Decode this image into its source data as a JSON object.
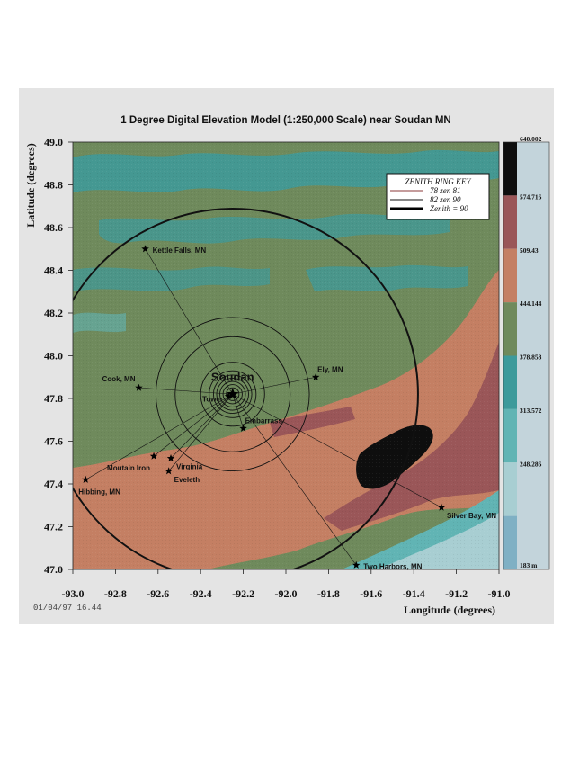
{
  "chart_data": {
    "type": "heatmap",
    "title": "1 Degree Digital Elevation Model (1:250,000 Scale) near Soudan MN",
    "xlabel": "Longitude (degrees)",
    "ylabel": "Latitude (degrees)",
    "xlim": [
      -93.0,
      -91.0
    ],
    "ylim": [
      47.0,
      49.0
    ],
    "x_ticks": [
      -93.0,
      -92.8,
      -92.6,
      -92.4,
      -92.2,
      -92.0,
      -91.8,
      -91.6,
      -91.4,
      -91.2,
      -91.0
    ],
    "x_tick_labels": [
      "-93.0",
      "-92.8",
      "-92.6",
      "-92.4",
      "-92.2",
      "-92.0",
      "-91.8",
      "-91.6",
      "-91.4",
      "-91.2",
      "-91.0"
    ],
    "y_ticks": [
      47.0,
      47.2,
      47.4,
      47.6,
      47.8,
      48.0,
      48.2,
      48.4,
      48.6,
      48.8,
      49.0
    ],
    "y_tick_labels": [
      "47.0",
      "47.2",
      "47.4",
      "47.6",
      "47.8",
      "48.0",
      "48.2",
      "48.4",
      "48.6",
      "48.8",
      "49.0"
    ],
    "timestamp": "01/04/97  16.44",
    "colorbar": {
      "labels": [
        "640.002",
        "574.716",
        "509.43",
        "444.144",
        "378.858",
        "313.572",
        "248.286",
        "183 m"
      ],
      "values": [
        640.002,
        574.716,
        509.43,
        444.144,
        378.858,
        313.572,
        248.286,
        183
      ],
      "unit": "m",
      "bands": [
        {
          "color": "#0e0e0e"
        },
        {
          "color": "#9a5658"
        },
        {
          "color": "#c47f63"
        },
        {
          "color": "#6f8a5c"
        },
        {
          "color": "#3d9a9b"
        },
        {
          "color": "#61b4b4"
        },
        {
          "color": "#a8ced2"
        },
        {
          "color": "#7fb0c4"
        }
      ]
    },
    "center": {
      "name": "Soudan",
      "lon": -92.25,
      "lat": 47.82
    },
    "sites": [
      {
        "name": "Kettle Falls, MN",
        "lon": -92.66,
        "lat": 48.5,
        "label_pos": "right"
      },
      {
        "name": "Cook, MN",
        "lon": -92.69,
        "lat": 47.85,
        "label_pos": "above-left"
      },
      {
        "name": "Ely, MN",
        "lon": -91.86,
        "lat": 47.9,
        "label_pos": "above-right"
      },
      {
        "name": "Tower",
        "lon": -92.27,
        "lat": 47.81,
        "label_pos": "left"
      },
      {
        "name": "Embarrass",
        "lon": -92.2,
        "lat": 47.66,
        "label_pos": "above-right"
      },
      {
        "name": "Virginia",
        "lon": -92.54,
        "lat": 47.52,
        "label_pos": "below-right"
      },
      {
        "name": "Mountain Iron",
        "lon": -92.62,
        "lat": 47.53,
        "label_pos": "below-left"
      },
      {
        "name": "Eveleth",
        "lon": -92.55,
        "lat": 47.46,
        "label_pos": "below-right"
      },
      {
        "name": "Hibbing, MN",
        "lon": -92.94,
        "lat": 47.42,
        "label_pos": "below"
      },
      {
        "name": "Silver Bay, MN",
        "lon": -91.27,
        "lat": 47.29,
        "label_pos": "below-right"
      },
      {
        "name": "Two Harbors, MN",
        "lon": -91.67,
        "lat": 47.02,
        "label_pos": "right"
      }
    ],
    "site_label_text": {
      "Mountain Iron": "Moutain Iron"
    },
    "zenith_key": {
      "title": "ZENITH RING KEY",
      "entries": [
        {
          "label": "78  zen  81",
          "color": "#8b3a3a",
          "width": 1
        },
        {
          "label": "82  zen  90",
          "color": "#111111",
          "width": 1
        },
        {
          "label": "Zenith = 90",
          "color": "#000000",
          "width": 3
        }
      ]
    },
    "rings_deg": [
      0.03,
      0.045,
      0.06,
      0.075,
      0.09,
      0.11,
      0.15,
      0.27,
      0.36,
      0.87
    ]
  }
}
